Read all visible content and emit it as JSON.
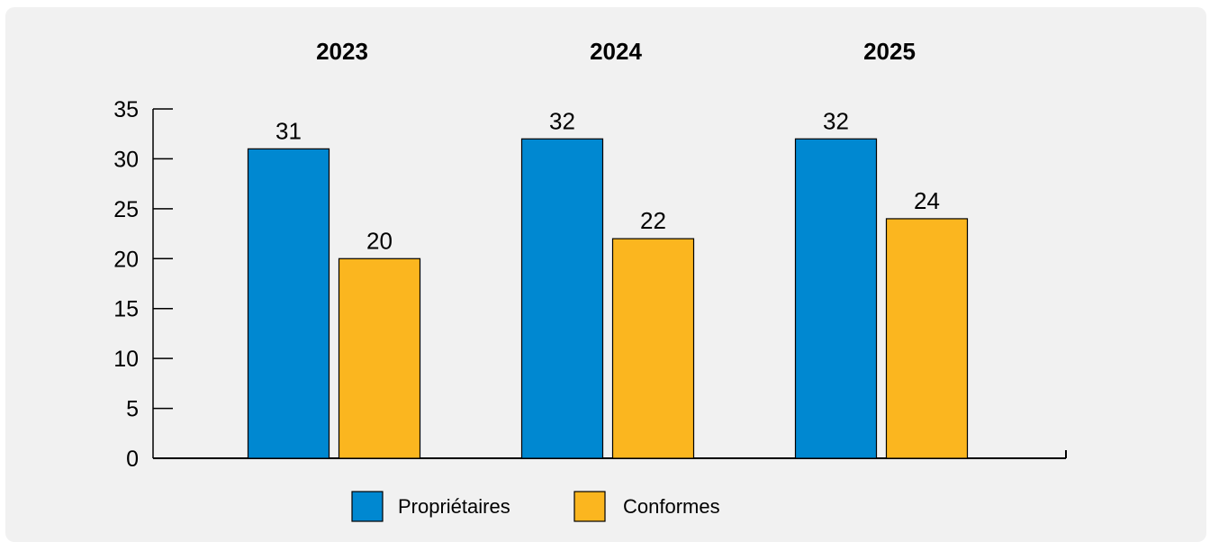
{
  "colors": {
    "background": "#f1f1f1",
    "proprietaires": "#0088d1",
    "conformes": "#fbb61f",
    "axis": "#000000"
  },
  "chart_data": {
    "type": "bar",
    "categories": [
      "2023",
      "2024",
      "2025"
    ],
    "series": [
      {
        "name": "Propriétaires",
        "color": "#0088d1",
        "values": [
          31,
          32,
          32
        ]
      },
      {
        "name": "Conformes",
        "color": "#fbb61f",
        "values": [
          20,
          22,
          24
        ]
      }
    ],
    "ylim": [
      0,
      35
    ],
    "yticks": [
      0,
      5,
      10,
      15,
      20,
      25,
      30,
      35
    ],
    "category_labels_position": "top",
    "legend_position": "bottom",
    "grid": false
  }
}
